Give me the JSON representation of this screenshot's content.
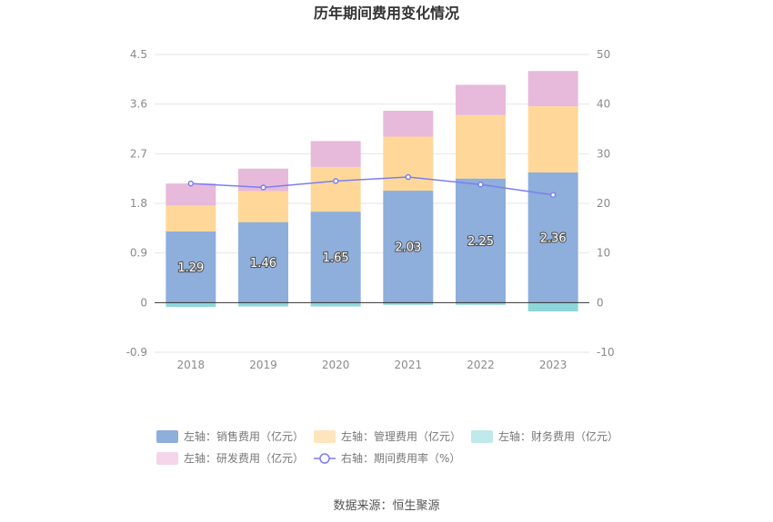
{
  "chart_data": {
    "type": "bar",
    "title": "历年期间费用变化情况",
    "categories": [
      "2018",
      "2019",
      "2020",
      "2021",
      "2022",
      "2023"
    ],
    "stacked": true,
    "y_left": {
      "ticks": [
        "4.5",
        "3.6",
        "2.7",
        "1.8",
        "0.9",
        "0",
        "-0.9"
      ],
      "range": [
        -0.9,
        4.5
      ]
    },
    "y_right": {
      "ticks": [
        "50",
        "40",
        "30",
        "20",
        "10",
        "0",
        "-10"
      ],
      "range": [
        -10,
        50
      ]
    },
    "series": [
      {
        "name": "左轴：销售费用（亿元）",
        "axis": "left",
        "type": "bar",
        "color": "#8eaedb",
        "values": [
          1.29,
          1.46,
          1.65,
          2.03,
          2.25,
          2.36
        ],
        "labels": [
          "1.29",
          "1.46",
          "1.65",
          "2.03",
          "2.25",
          "2.36"
        ]
      },
      {
        "name": "左轴：管理费用（亿元）",
        "axis": "left",
        "type": "bar",
        "color": "#ffd899",
        "values": [
          0.47,
          0.56,
          0.81,
          0.98,
          1.15,
          1.2
        ]
      },
      {
        "name": "左轴：财务费用（亿元）",
        "axis": "left",
        "type": "bar",
        "color": "#8dd6d9",
        "values": [
          -0.08,
          -0.07,
          -0.07,
          -0.04,
          -0.04,
          -0.16
        ]
      },
      {
        "name": "左轴：研发费用（亿元）",
        "axis": "left",
        "type": "bar",
        "color": "#e7b9da",
        "values": [
          0.4,
          0.41,
          0.47,
          0.47,
          0.55,
          0.64
        ]
      },
      {
        "name": "右轴：期间费用率（%）",
        "axis": "right",
        "type": "line",
        "color": "#7b7ff0",
        "values": [
          24.0,
          23.2,
          24.5,
          25.3,
          23.8,
          21.7
        ]
      }
    ],
    "legend_position": "bottom",
    "grid": true
  },
  "source": "数据来源：恒生聚源"
}
